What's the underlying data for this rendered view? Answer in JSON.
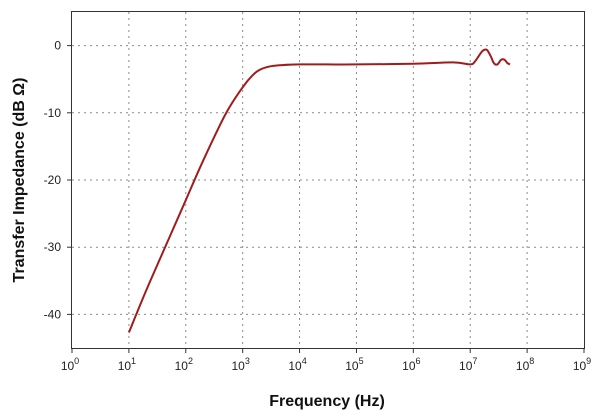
{
  "chart_data": {
    "type": "line",
    "xlabel": "Frequency (Hz)",
    "ylabel": "Transfer Impedance (dB Ω)",
    "x_scale": "log",
    "xlim": [
      1,
      1000000000
    ],
    "ylim": [
      -45,
      5
    ],
    "x_ticks": [
      {
        "base": "10",
        "exp": "0"
      },
      {
        "base": "10",
        "exp": "1"
      },
      {
        "base": "10",
        "exp": "2"
      },
      {
        "base": "10",
        "exp": "3"
      },
      {
        "base": "10",
        "exp": "4"
      },
      {
        "base": "10",
        "exp": "5"
      },
      {
        "base": "10",
        "exp": "6"
      },
      {
        "base": "10",
        "exp": "7"
      },
      {
        "base": "10",
        "exp": "8"
      },
      {
        "base": "10",
        "exp": "9"
      }
    ],
    "y_ticks": [
      "0",
      "-10",
      "-20",
      "-30",
      "-40"
    ],
    "grid": true,
    "series": [
      {
        "color": "#a01c1c",
        "x": [
          10,
          20,
          50,
          100,
          200,
          500,
          1000,
          1500,
          2000,
          3000,
          5000,
          10000,
          30000,
          100000,
          1000000,
          5000000,
          10000000,
          12000000,
          14000000,
          16000000,
          18000000,
          20000000,
          23000000,
          26000000,
          30000000,
          35000000,
          40000000,
          45000000,
          50000000
        ],
        "y": [
          -42.7,
          -36.5,
          -28.8,
          -23.0,
          -17.2,
          -10.2,
          -6.2,
          -4.4,
          -3.6,
          -3.1,
          -2.9,
          -2.8,
          -2.8,
          -2.8,
          -2.7,
          -2.5,
          -2.8,
          -2.4,
          -1.6,
          -0.9,
          -0.6,
          -0.7,
          -1.6,
          -2.6,
          -2.8,
          -2.1,
          -2.1,
          -2.6,
          -2.8
        ]
      }
    ]
  }
}
